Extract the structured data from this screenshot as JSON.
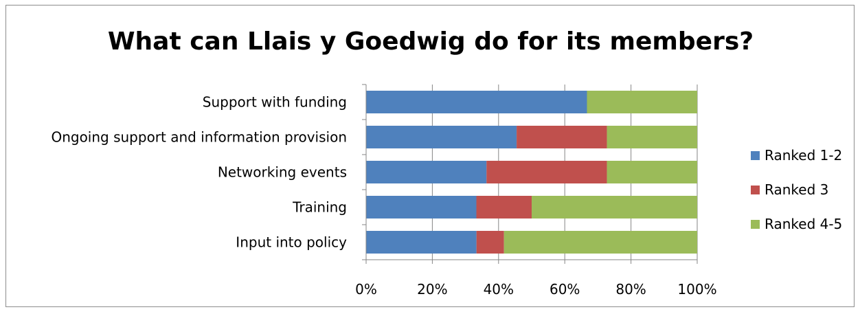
{
  "chart_data": {
    "type": "bar",
    "orientation": "horizontal",
    "stacked": "percent",
    "title": "What can Llais y Goedwig do for its members?",
    "categories": [
      "Support with funding",
      "Ongoing support and information provision",
      "Networking events",
      "Training",
      "Input into policy"
    ],
    "series": [
      {
        "name": "Ranked 1-2",
        "color": "#4F81BD",
        "values": [
          66.7,
          45.5,
          36.4,
          33.3,
          33.3
        ]
      },
      {
        "name": "Ranked 3",
        "color": "#C0504D",
        "values": [
          0,
          27.3,
          36.4,
          16.7,
          8.3
        ]
      },
      {
        "name": "Ranked 4-5",
        "color": "#9BBB59",
        "values": [
          33.3,
          27.3,
          27.3,
          50.0,
          58.3
        ]
      }
    ],
    "xlim": [
      0,
      100
    ],
    "x_ticks": [
      "0%",
      "20%",
      "40%",
      "60%",
      "80%",
      "100%"
    ],
    "grid": true,
    "legend_position": "right"
  }
}
